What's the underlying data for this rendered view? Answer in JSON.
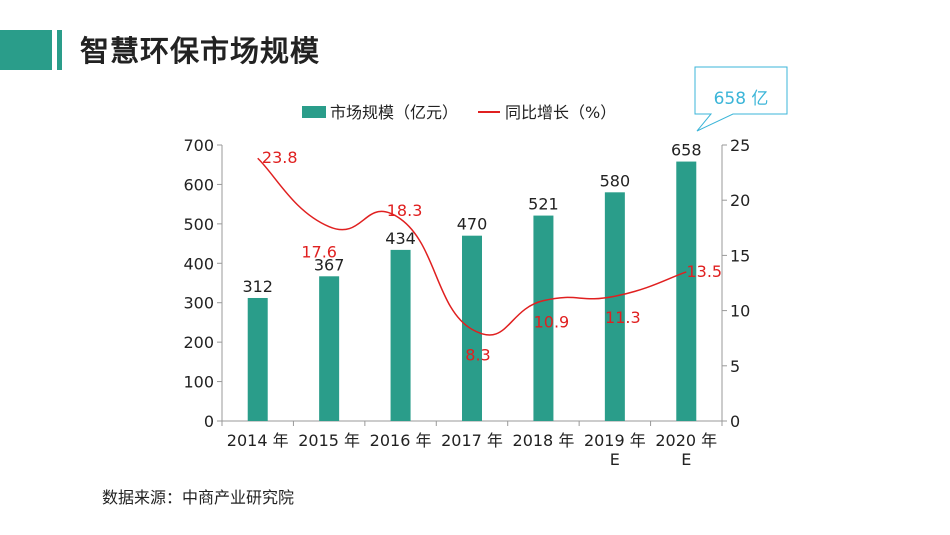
{
  "header": {
    "title": "智慧环保市场规模"
  },
  "source": "数据来源：中商产业研究院",
  "callout": {
    "text": "658 亿",
    "color": "#3bb5d8"
  },
  "colors": {
    "bar": "#2a9d8a",
    "line": "#e02020",
    "accent": "#2a9d8a"
  },
  "chart_data": {
    "type": "bar+line",
    "categories": [
      [
        "2014 年"
      ],
      [
        "2015 年"
      ],
      [
        "2016 年"
      ],
      [
        "2017 年"
      ],
      [
        "2018 年"
      ],
      [
        "2019 年",
        "E"
      ],
      [
        "2020 年",
        "E"
      ]
    ],
    "series": [
      {
        "name": "市场规模（亿元）",
        "type": "bar",
        "axis": "left",
        "values": [
          312,
          367,
          434,
          470,
          521,
          580,
          658
        ]
      },
      {
        "name": "同比增长（%）",
        "type": "line",
        "axis": "right",
        "values": [
          23.8,
          17.6,
          18.3,
          8.3,
          10.9,
          11.3,
          13.5
        ]
      }
    ],
    "yleft": {
      "ylim": [
        0,
        700
      ],
      "ticks": [
        0,
        100,
        200,
        300,
        400,
        500,
        600,
        700
      ]
    },
    "yright": {
      "ylim": [
        0,
        25
      ],
      "ticks": [
        0,
        5,
        10,
        15,
        20,
        25
      ]
    },
    "legend": "top",
    "grid": false
  }
}
